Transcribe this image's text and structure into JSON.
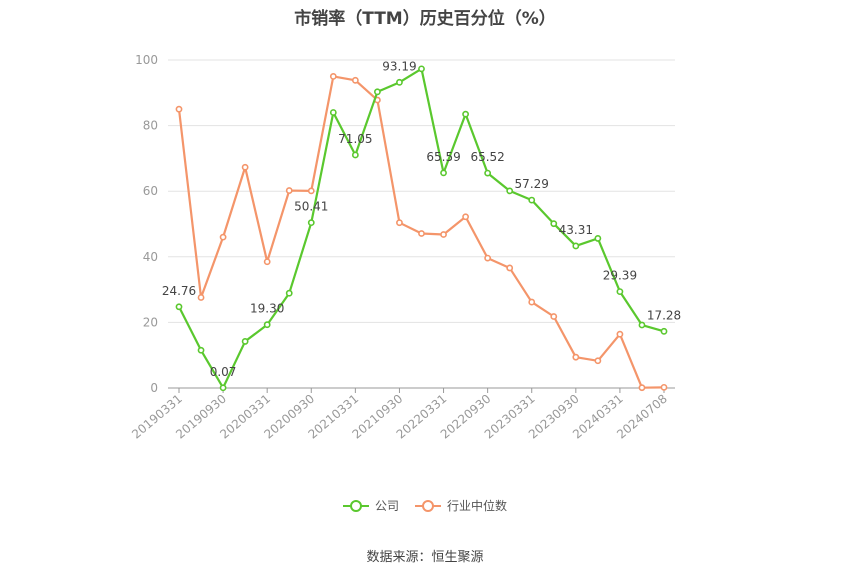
{
  "chart_data": {
    "type": "line",
    "title": "市销率（TTM）历史百分位（%）",
    "xlabel": "",
    "ylabel": "",
    "ylim": [
      0,
      100
    ],
    "yticks": [
      0,
      20,
      40,
      60,
      80,
      100
    ],
    "grid": true,
    "legend_position": "bottom",
    "x_tick_labels": [
      "20190331",
      "20190930",
      "20200331",
      "20200930",
      "20210331",
      "20210930",
      "20220331",
      "20220930",
      "20230331",
      "20230930",
      "20240331",
      "20240708"
    ],
    "series": [
      {
        "name": "公司",
        "color": "#5ac82e",
        "values": [
          24.76,
          11.5,
          0.07,
          14.2,
          19.3,
          28.9,
          50.41,
          84.0,
          71.05,
          90.3,
          93.19,
          97.3,
          65.59,
          83.5,
          65.52,
          60.1,
          57.29,
          50.1,
          43.31,
          45.6,
          29.39,
          19.2,
          17.28
        ],
        "labeled_points": [
          {
            "index": 0,
            "label": "24.76"
          },
          {
            "index": 2,
            "label": "0.07"
          },
          {
            "index": 4,
            "label": "19.30"
          },
          {
            "index": 6,
            "label": "50.41"
          },
          {
            "index": 8,
            "label": "71.05"
          },
          {
            "index": 10,
            "label": "93.19"
          },
          {
            "index": 12,
            "label": "65.59"
          },
          {
            "index": 14,
            "label": "65.52"
          },
          {
            "index": 16,
            "label": "57.29"
          },
          {
            "index": 18,
            "label": "43.31"
          },
          {
            "index": 20,
            "label": "29.39"
          },
          {
            "index": 22,
            "label": "17.28"
          }
        ]
      },
      {
        "name": "行业中位数",
        "color": "#f4956a",
        "values": [
          85.0,
          27.6,
          46.0,
          67.3,
          38.5,
          60.2,
          60.1,
          95.0,
          93.8,
          87.8,
          50.4,
          47.1,
          46.8,
          52.2,
          39.6,
          36.6,
          26.2,
          21.8,
          9.4,
          8.3,
          16.4,
          0.1,
          0.2
        ]
      }
    ]
  },
  "legend": {
    "company_label": "公司",
    "industry_label": "行业中位数"
  },
  "source": "数据来源：恒生聚源"
}
